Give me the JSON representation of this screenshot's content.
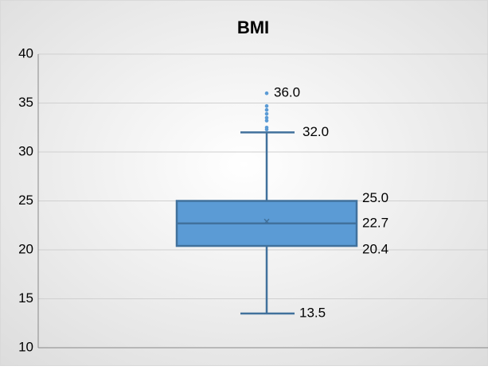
{
  "chart_data": {
    "type": "box",
    "title": "BMI",
    "values": [
      13.5,
      20.4,
      22.7,
      25.0,
      32.0
    ],
    "value_labels": [
      "13.5",
      "20.4",
      "22.7",
      "25.0",
      "32.0"
    ],
    "mean": 22.9,
    "outliers": [
      32.3,
      32.5,
      33.2,
      33.5,
      33.9,
      34.3,
      34.7
    ],
    "extreme": {
      "value": 36.0,
      "label": "36.0"
    },
    "color": "#5b9bd5",
    "edge_color": "#41719c",
    "ylim": [
      10,
      40
    ],
    "yticks": [
      10,
      15,
      20,
      25,
      30,
      35,
      40
    ],
    "grid": true
  }
}
